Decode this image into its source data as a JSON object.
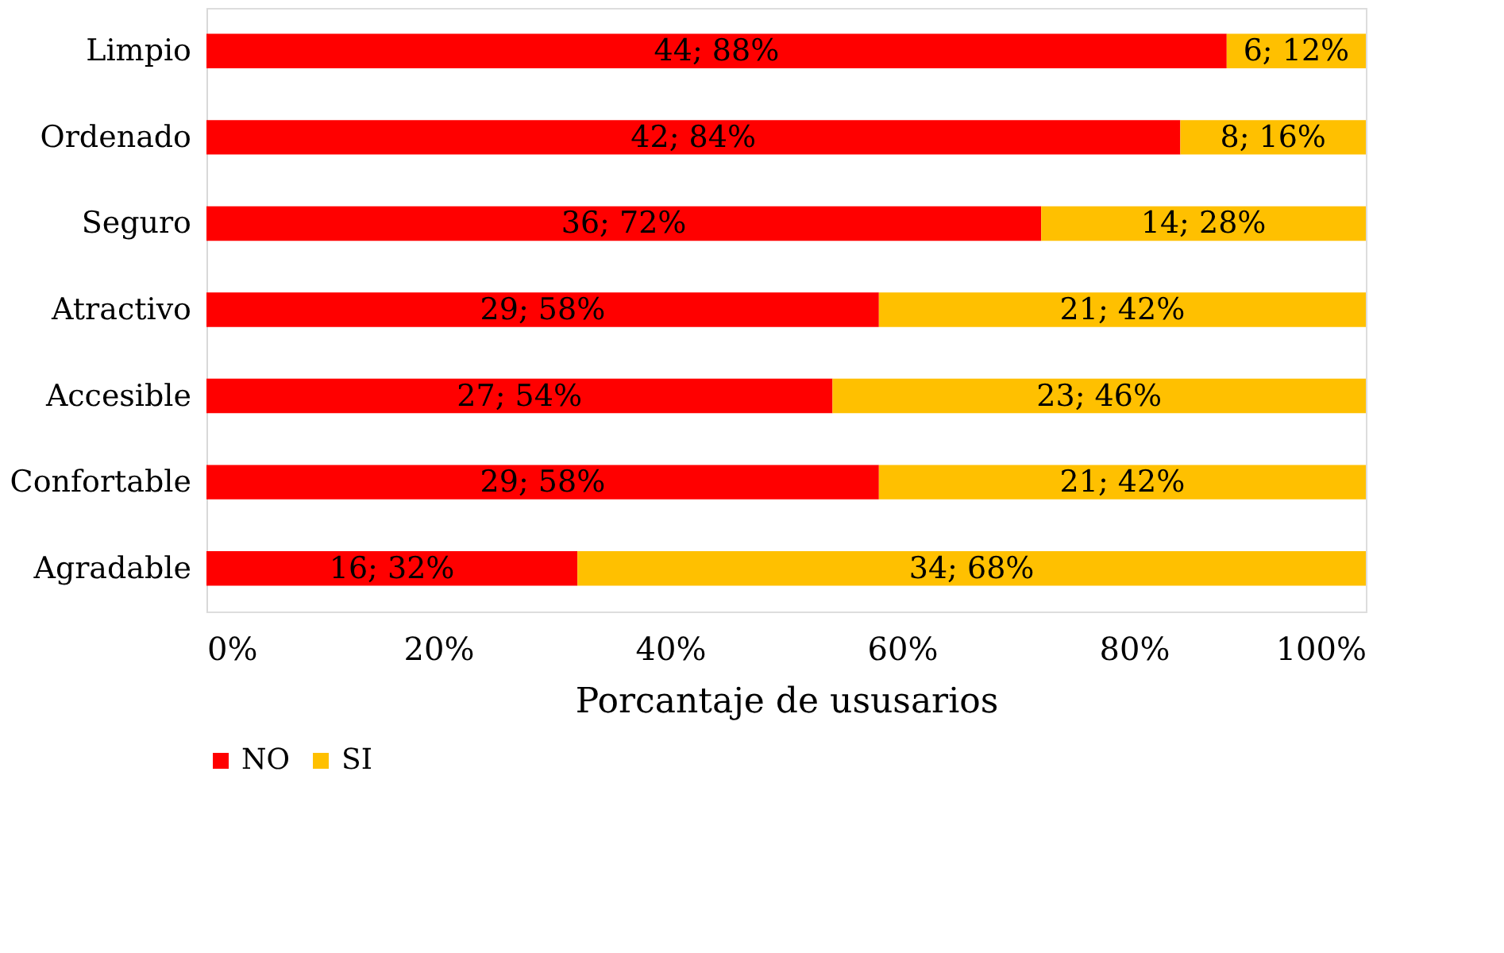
{
  "chart_data": {
    "type": "bar",
    "orientation": "horizontal",
    "stacked": true,
    "xlabel": "Porcantaje de ususarios",
    "categories": [
      "Limpio",
      "Ordenado",
      "Seguro",
      "Atractivo",
      "Accesible",
      "Confortable",
      "Agradable"
    ],
    "series": [
      {
        "name": "NO",
        "color": "#ff0000",
        "values": [
          88,
          84,
          72,
          58,
          54,
          58,
          32
        ],
        "value_labels": [
          "44; 88%",
          "42; 84%",
          "36; 72%",
          "29; 58%",
          "27; 54%",
          "29; 58%",
          "16; 32%"
        ]
      },
      {
        "name": "SI",
        "color": "#ffc000",
        "values": [
          12,
          16,
          28,
          42,
          46,
          42,
          68
        ],
        "value_labels": [
          "6; 12%",
          "8; 16%",
          "14; 28%",
          "21; 42%",
          "23; 46%",
          "21; 42%",
          "34; 68%"
        ]
      }
    ],
    "xlim": [
      0,
      100
    ],
    "xticks": [
      {
        "value": 0,
        "label": "0%"
      },
      {
        "value": 20,
        "label": "20%"
      },
      {
        "value": 40,
        "label": "40%"
      },
      {
        "value": 60,
        "label": "60%"
      },
      {
        "value": 80,
        "label": "80%"
      },
      {
        "value": 100,
        "label": "100%"
      }
    ],
    "grid": false,
    "legend": "bottom"
  }
}
